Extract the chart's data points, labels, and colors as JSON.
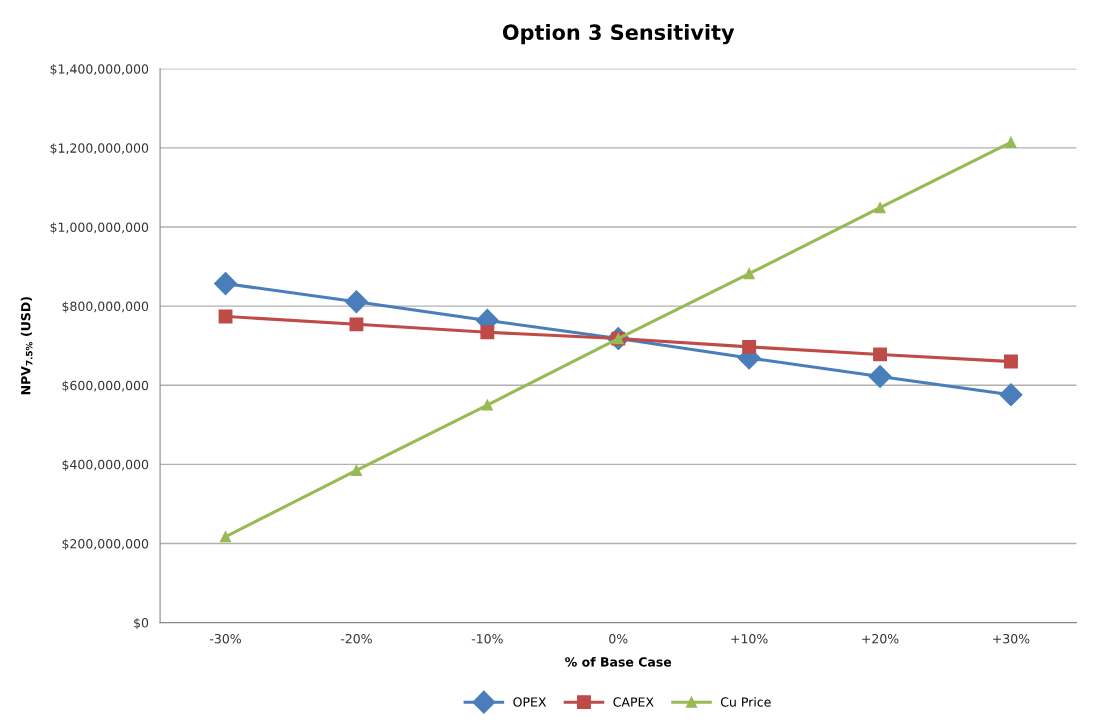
{
  "chart_data": {
    "type": "line",
    "title": "Option 3 Sensitivity",
    "xlabel": "% of Base Case",
    "ylabel": "NPV$_{7.5%}$ (USD)",
    "categories": [
      "-30%",
      "-20%",
      "-10%",
      "0%",
      "+10%",
      "+20%",
      "+30%"
    ],
    "series": [
      {
        "name": "OPEX",
        "color": "#4a7ebb",
        "marker": "diamond",
        "values": [
          857000000,
          811000000,
          764000000,
          718000000,
          669000000,
          622000000,
          576000000
        ]
      },
      {
        "name": "CAPEX",
        "color": "#be4b48",
        "marker": "square",
        "values": [
          774000000,
          754000000,
          734000000,
          718000000,
          697000000,
          678000000,
          660000000
        ]
      },
      {
        "name": "Cu Price",
        "color": "#98b954",
        "marker": "triangle",
        "values": [
          217000000,
          385000000,
          550000000,
          718000000,
          882000000,
          1049000000,
          1214000000
        ]
      }
    ],
    "ylim": [
      0,
      1400000000
    ],
    "yticks": [
      {
        "value": 0,
        "label": "$0"
      },
      {
        "value": 200000000,
        "label": "$200,000,000"
      },
      {
        "value": 400000000,
        "label": "$400,000,000"
      },
      {
        "value": 600000000,
        "label": "$600,000,000"
      },
      {
        "value": 800000000,
        "label": "$800,000,000"
      },
      {
        "value": 1000000000,
        "label": "$1,000,000,000"
      },
      {
        "value": 1200000000,
        "label": "$1,200,000,000"
      },
      {
        "value": 1400000000,
        "label": "$1,400,000,000"
      }
    ],
    "grid": "y",
    "legend": "bottom",
    "line_style": "solid"
  }
}
